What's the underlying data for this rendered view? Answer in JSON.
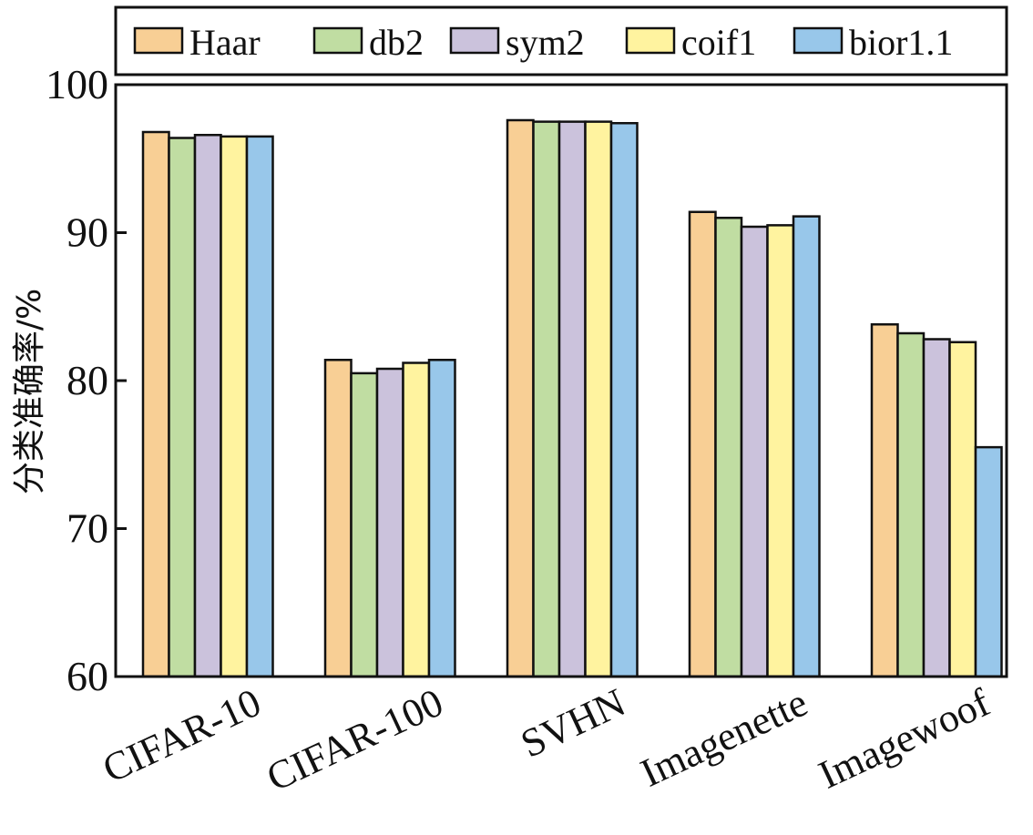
{
  "chart_data": {
    "type": "bar",
    "title": "",
    "xlabel": "",
    "ylabel": "分类准确率/%",
    "ylim": [
      60,
      100
    ],
    "yticks": [
      60,
      70,
      80,
      90,
      100
    ],
    "grid": false,
    "legend_position": "top",
    "categories": [
      "CIFAR-10",
      "CIFAR-100",
      "SVHN",
      "Imagenette",
      "Imagewoof"
    ],
    "series": [
      {
        "name": "Haar",
        "color": "#F8CF95",
        "values": [
          96.8,
          81.4,
          97.6,
          91.4,
          83.8
        ]
      },
      {
        "name": "db2",
        "color": "#C0DDA2",
        "values": [
          96.4,
          80.5,
          97.5,
          91.0,
          83.2
        ]
      },
      {
        "name": "sym2",
        "color": "#CBC2DC",
        "values": [
          96.6,
          80.8,
          97.5,
          90.4,
          82.8
        ]
      },
      {
        "name": "coif1",
        "color": "#FFF39F",
        "values": [
          96.5,
          81.2,
          97.5,
          90.5,
          82.6
        ]
      },
      {
        "name": "bior1.1",
        "color": "#98C7EA",
        "values": [
          96.5,
          81.4,
          97.4,
          91.1,
          75.5
        ]
      }
    ]
  }
}
